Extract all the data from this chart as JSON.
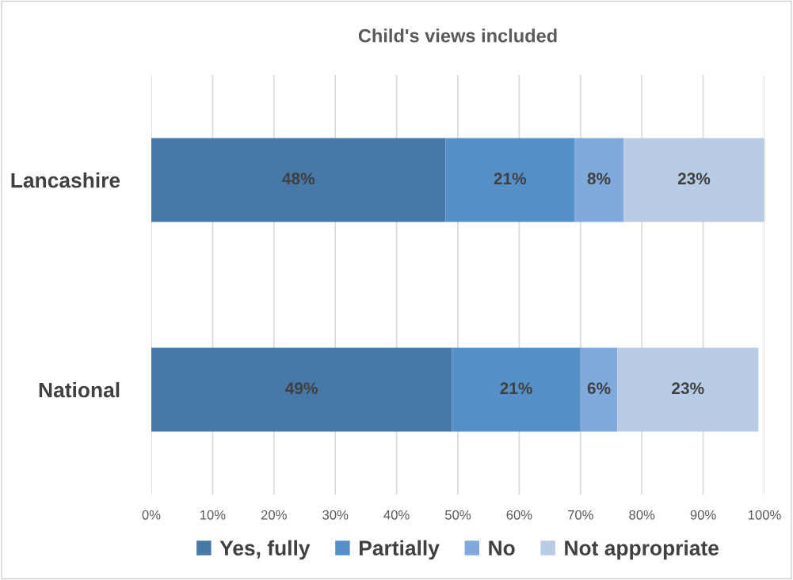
{
  "chart_data": {
    "type": "bar",
    "title": "Child's views included",
    "orientation": "horizontal",
    "stacked": true,
    "categories": [
      "Lancashire",
      "National"
    ],
    "series": [
      {
        "name": "Yes, fully",
        "color": "#4678a8",
        "values": [
          48,
          49
        ],
        "value_labels": [
          "48%",
          "49%"
        ]
      },
      {
        "name": "Partially",
        "color": "#5591c8",
        "values": [
          21,
          21
        ],
        "value_labels": [
          "21%",
          "21%"
        ]
      },
      {
        "name": "No",
        "color": "#80aadb",
        "values": [
          8,
          6
        ],
        "value_labels": [
          "8%",
          "6%"
        ]
      },
      {
        "name": "Not appropriate",
        "color": "#b8cce6",
        "values": [
          23,
          23
        ],
        "value_labels": [
          "23%",
          "23%"
        ]
      }
    ],
    "xlim": [
      0,
      100
    ],
    "xticks": [
      {
        "value": 0,
        "label": "0%"
      },
      {
        "value": 10,
        "label": "10%"
      },
      {
        "value": 20,
        "label": "20%"
      },
      {
        "value": 30,
        "label": "30%"
      },
      {
        "value": 40,
        "label": "40%"
      },
      {
        "value": 50,
        "label": "50%"
      },
      {
        "value": 60,
        "label": "60%"
      },
      {
        "value": 70,
        "label": "70%"
      },
      {
        "value": 80,
        "label": "80%"
      },
      {
        "value": 90,
        "label": "90%"
      },
      {
        "value": 100,
        "label": "100%"
      }
    ],
    "grid": "x",
    "legend": "bottom"
  }
}
